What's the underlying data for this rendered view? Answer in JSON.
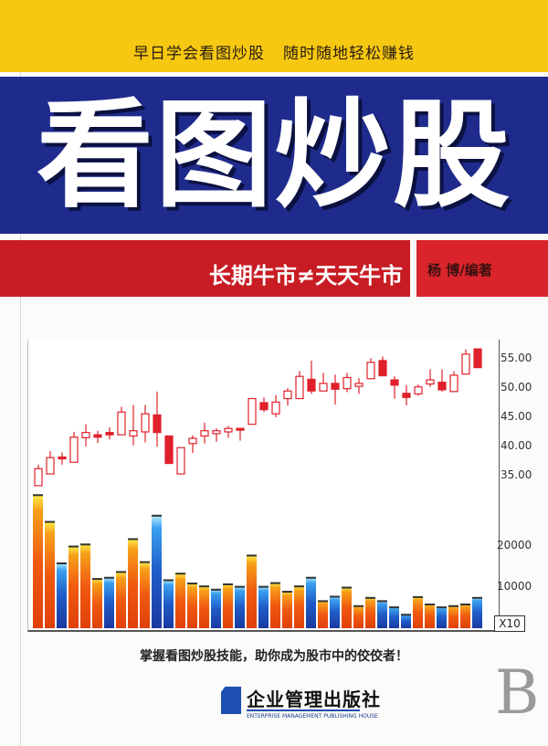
{
  "cover": {
    "tagline": [
      "早日学会看图炒股",
      "随时随地轻松赚钱"
    ],
    "title": "看图炒股",
    "subtitle": "长期牛市≠天天牛市",
    "author": "杨 博/编著",
    "slogan": "掌握看图炒股技能，助你成为股市中的佼佼者！",
    "publisher": {
      "name": "企业管理出版社",
      "name_en": "ENTERPRISE MANAGEMENT PUBLISHING HOUSE"
    },
    "series_letter": "B",
    "colors": {
      "yellow": "#f6c812",
      "blue": "#1f2b8c",
      "red": "#c81c24",
      "candle": "#e0202a",
      "volume_up": "#f05a10",
      "volume_down": "#1a3aa0"
    }
  },
  "chart_data": {
    "type": "candlestick",
    "price_axis": {
      "ticks": [
        "55.00",
        "50.00",
        "45.00",
        "40.00",
        "35.00"
      ],
      "range": [
        33,
        57
      ]
    },
    "volume_axis": {
      "ticks": [
        "20000",
        "10000"
      ],
      "multiplier_label": "X10",
      "range": [
        0,
        33000
      ]
    },
    "candles": [
      {
        "o": 33.3,
        "c": 36.2,
        "h": 36.9,
        "l": 33.3
      },
      {
        "o": 35.3,
        "c": 38.1,
        "h": 39.2,
        "l": 35.3
      },
      {
        "o": 38.2,
        "c": 38.0,
        "h": 39.0,
        "l": 36.9
      },
      {
        "o": 37.3,
        "c": 41.6,
        "h": 42.5,
        "l": 37.3
      },
      {
        "o": 41.5,
        "c": 42.4,
        "h": 43.8,
        "l": 40.0
      },
      {
        "o": 42.0,
        "c": 41.6,
        "h": 42.7,
        "l": 40.6
      },
      {
        "o": 42.4,
        "c": 42.0,
        "h": 43.3,
        "l": 41.2
      },
      {
        "o": 42.0,
        "c": 45.9,
        "h": 46.8,
        "l": 42.0
      },
      {
        "o": 41.8,
        "c": 42.7,
        "h": 47.1,
        "l": 40.2
      },
      {
        "o": 42.5,
        "c": 45.6,
        "h": 47.1,
        "l": 40.7
      },
      {
        "o": 45.4,
        "c": 42.4,
        "h": 49.4,
        "l": 40.0
      },
      {
        "o": 41.8,
        "c": 37.1,
        "h": 41.8,
        "l": 37.1
      },
      {
        "o": 35.3,
        "c": 39.8,
        "h": 39.8,
        "l": 35.3
      },
      {
        "o": 40.5,
        "c": 41.4,
        "h": 41.9,
        "l": 38.9
      },
      {
        "o": 41.8,
        "c": 42.7,
        "h": 44.1,
        "l": 40.5
      },
      {
        "o": 42.2,
        "c": 42.7,
        "h": 43.1,
        "l": 40.8
      },
      {
        "o": 42.5,
        "c": 43.1,
        "h": 43.5,
        "l": 41.5
      },
      {
        "o": 43.1,
        "c": 42.9,
        "h": 43.1,
        "l": 41.0
      },
      {
        "o": 43.8,
        "c": 48.2,
        "h": 48.2,
        "l": 43.8
      },
      {
        "o": 47.5,
        "c": 46.3,
        "h": 48.4,
        "l": 45.9
      },
      {
        "o": 45.6,
        "c": 47.6,
        "h": 48.8,
        "l": 45.0
      },
      {
        "o": 48.2,
        "c": 49.5,
        "h": 50.0,
        "l": 47.0
      },
      {
        "o": 48.2,
        "c": 52.0,
        "h": 52.9,
        "l": 48.2
      },
      {
        "o": 51.5,
        "c": 49.5,
        "h": 54.7,
        "l": 49.0
      },
      {
        "o": 49.5,
        "c": 50.8,
        "h": 52.6,
        "l": 49.5
      },
      {
        "o": 50.8,
        "c": 49.8,
        "h": 52.3,
        "l": 47.2
      },
      {
        "o": 49.9,
        "c": 51.8,
        "h": 52.6,
        "l": 49.3
      },
      {
        "o": 50.3,
        "c": 50.8,
        "h": 51.7,
        "l": 49.0
      },
      {
        "o": 51.6,
        "c": 54.4,
        "h": 55.1,
        "l": 51.6
      },
      {
        "o": 54.7,
        "c": 52.1,
        "h": 55.4,
        "l": 52.1
      },
      {
        "o": 51.4,
        "c": 50.5,
        "h": 52.0,
        "l": 48.2
      },
      {
        "o": 49.1,
        "c": 48.4,
        "h": 50.5,
        "l": 47.0
      },
      {
        "o": 49.0,
        "c": 50.2,
        "h": 50.6,
        "l": 48.7
      },
      {
        "o": 50.7,
        "c": 51.4,
        "h": 53.2,
        "l": 50.2
      },
      {
        "o": 51.0,
        "c": 49.7,
        "h": 53.2,
        "l": 49.4
      },
      {
        "o": 49.4,
        "c": 52.2,
        "h": 52.9,
        "l": 49.4
      },
      {
        "o": 52.4,
        "c": 55.8,
        "h": 56.6,
        "l": 52.4
      },
      {
        "o": 56.7,
        "c": 53.5,
        "h": 56.7,
        "l": 53.5
      }
    ],
    "volume": [
      32600,
      26100,
      16000,
      20100,
      20600,
      12200,
      12500,
      13900,
      21900,
      16300,
      27600,
      11900,
      13500,
      11100,
      10400,
      9600,
      10900,
      10300,
      17900,
      10300,
      11200,
      9100,
      10400,
      12500,
      6800,
      7900,
      10100,
      5600,
      7600,
      6800,
      5300,
      3500,
      7800,
      6000,
      5300,
      5600,
      6000,
      7600
    ],
    "volume_colors": [
      "orange",
      "orange",
      "blue",
      "orange",
      "orange",
      "orange",
      "blue",
      "orange",
      "orange",
      "orange",
      "blue",
      "blue",
      "orange",
      "orange",
      "orange",
      "blue",
      "orange",
      "blue",
      "orange",
      "blue",
      "orange",
      "orange",
      "orange",
      "blue",
      "orange",
      "blue",
      "orange",
      "orange",
      "orange",
      "blue",
      "blue",
      "blue",
      "orange",
      "orange",
      "blue",
      "orange",
      "orange",
      "blue"
    ]
  }
}
